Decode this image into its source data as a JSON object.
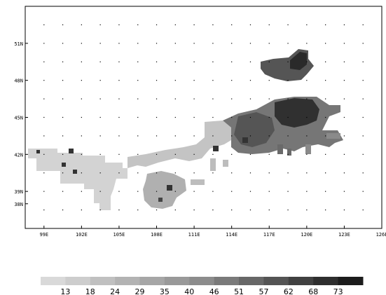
{
  "map": {
    "longitude_labels": [
      "99E",
      "102E",
      "105E",
      "108E",
      "111E",
      "114E",
      "117E",
      "120E",
      "123E",
      "126E"
    ],
    "latitude_labels": [
      "38N",
      "39N",
      "42N",
      "45N",
      "48N",
      "51N"
    ],
    "lon_range": [
      97.5,
      126
    ],
    "lat_range": [
      36,
      54
    ],
    "grid": "dotted"
  },
  "legend": {
    "levels": [
      "13",
      "18",
      "24",
      "29",
      "35",
      "40",
      "46",
      "51",
      "57",
      "62",
      "68",
      "73"
    ],
    "colors": [
      "#d9d9d9",
      "#cdcdcd",
      "#c0c0c0",
      "#b3b3b3",
      "#a6a6a6",
      "#999999",
      "#8c8c8c",
      "#7a7a7a",
      "#676767",
      "#545454",
      "#414141",
      "#2e2e2e",
      "#1c1c1c"
    ]
  }
}
